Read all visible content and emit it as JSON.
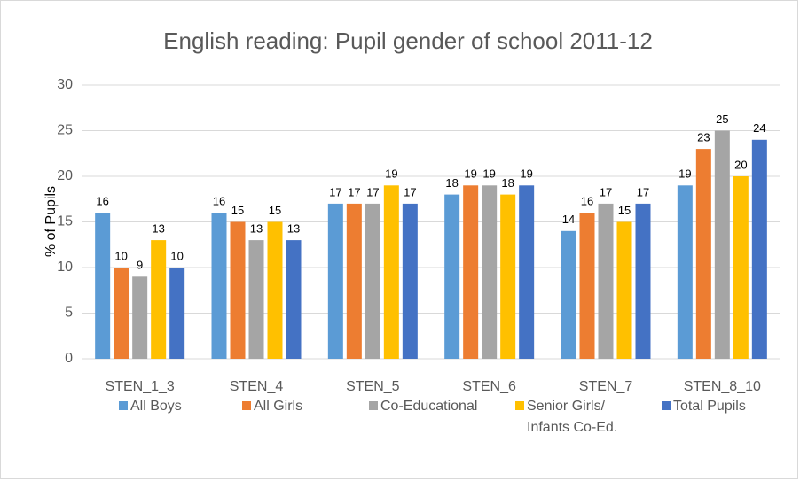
{
  "chart_data": {
    "type": "bar",
    "title": "English reading: Pupil gender of school 2011-12",
    "y_label": "% of Pupils",
    "categories": [
      "STEN_1_3",
      "STEN_4",
      "STEN_5",
      "STEN_6",
      "STEN_7",
      "STEN_8_10"
    ],
    "series": [
      {
        "name": "All Boys",
        "color": "#5b9bd5",
        "values": [
          16,
          16,
          17,
          18,
          14,
          19
        ]
      },
      {
        "name": "All Girls",
        "color": "#ed7d31",
        "values": [
          10,
          15,
          17,
          19,
          16,
          23
        ]
      },
      {
        "name": "Co-Educational",
        "color": "#a5a5a5",
        "values": [
          9,
          13,
          17,
          19,
          17,
          25
        ]
      },
      {
        "name": "Senior Girls/ Infants Co-Ed.",
        "color": "#ffc000",
        "values": [
          13,
          15,
          19,
          18,
          15,
          20
        ]
      },
      {
        "name": "Total Pupils",
        "color": "#4472c4",
        "values": [
          10,
          13,
          17,
          19,
          17,
          24
        ]
      }
    ],
    "ylim": [
      0,
      30
    ],
    "yticks": [
      0,
      5,
      10,
      15,
      20,
      25,
      30
    ],
    "grid": true,
    "legend": "bottom"
  }
}
